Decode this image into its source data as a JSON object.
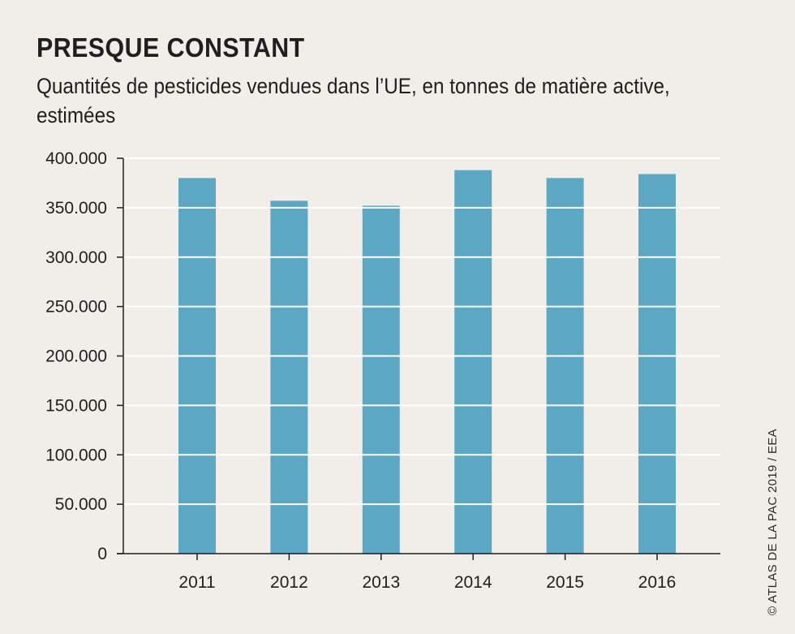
{
  "title": "PRESQUE CONSTANT",
  "subtitle": "Quantités de pesticides vendues dans l’UE, en tonnes de matière active, estimées",
  "credit": "© ATLAS DE LA PAC 2019 / EEA",
  "colors": {
    "bar": "#5ba7c4",
    "background": "#f1ede8",
    "gridline": "#ffffff",
    "axis": "#1f1f1f"
  },
  "chart_data": {
    "type": "bar",
    "title": "PRESQUE CONSTANT",
    "subtitle": "Quantités de pesticides vendues dans l’UE, en tonnes de matière active, estimées",
    "categories": [
      "2011",
      "2012",
      "2013",
      "2014",
      "2015",
      "2016"
    ],
    "values": [
      380000,
      357000,
      352000,
      388000,
      380000,
      384000
    ],
    "ylim": [
      0,
      400000
    ],
    "yticks": [
      0,
      50000,
      100000,
      150000,
      200000,
      250000,
      300000,
      350000,
      400000
    ],
    "ytick_labels": [
      "0",
      "50.000",
      "100.000",
      "150.000",
      "200.000",
      "250.000",
      "300.000",
      "350.000",
      "400.000"
    ],
    "grid": true,
    "legend": "none"
  }
}
